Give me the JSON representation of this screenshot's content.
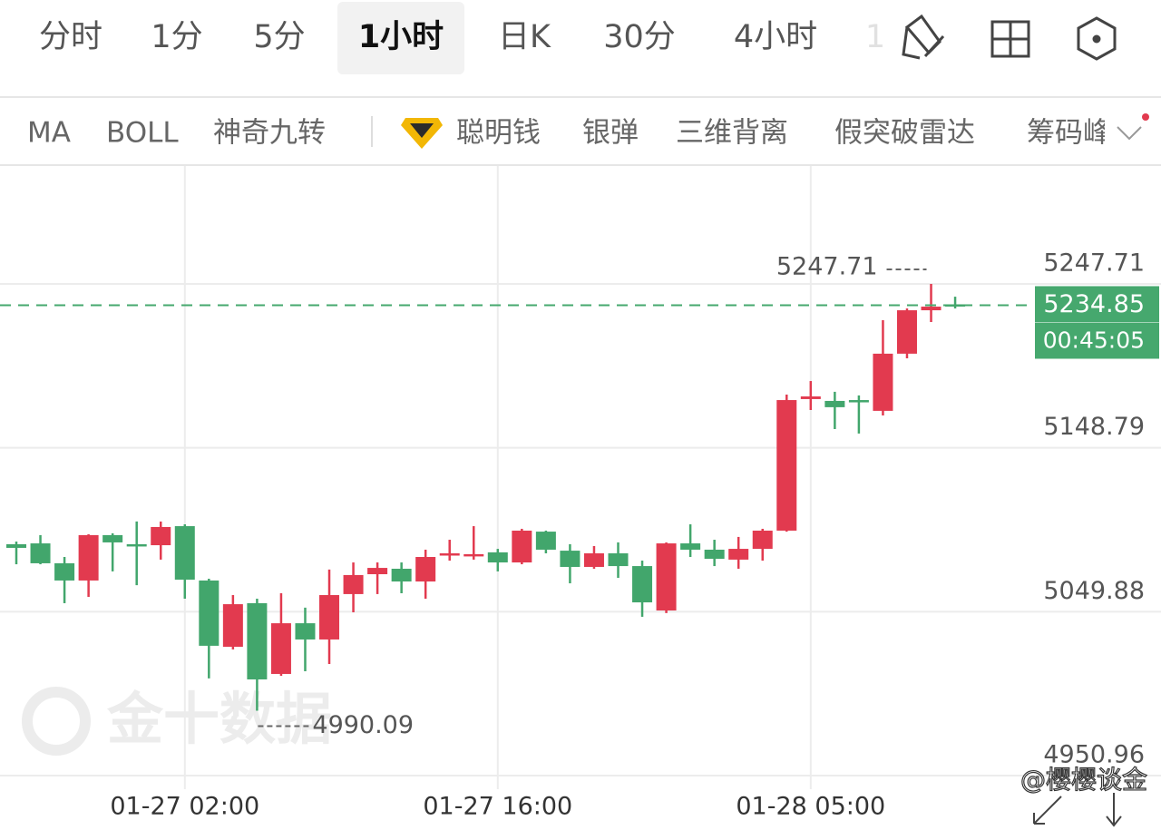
{
  "tabs": [
    "分时",
    "1分",
    "5分",
    "1小时",
    "日K",
    "30分",
    "4小时",
    "1"
  ],
  "active_tab": 3,
  "indicators": [
    "MA",
    "BOLL",
    "神奇九转",
    "聪明钱",
    "银弹",
    "三维背离",
    "假突破雷达",
    "筹码峰"
  ],
  "watermark": "金十数据",
  "credit": "@樱樱谈金",
  "chart_data": {
    "type": "candlestick",
    "categories": [
      null,
      null,
      null,
      null,
      null,
      null,
      null,
      "01-27 02:00",
      null,
      null,
      null,
      null,
      null,
      null,
      null,
      null,
      null,
      null,
      null,
      null,
      "01-27 16:00",
      null,
      null,
      null,
      null,
      null,
      null,
      null,
      null,
      null,
      null,
      null,
      null,
      "01-28 05:00",
      null,
      null,
      null,
      null,
      null,
      null
    ],
    "open": [
      5090.6,
      5091.1,
      5079.1,
      5068.7,
      5096.1,
      5090.6,
      5090.0,
      5101.5,
      5068.7,
      5028.7,
      5055.0,
      5012.3,
      5042.9,
      5033.1,
      5060.5,
      5072.5,
      5075.8,
      5068.1,
      5084.0,
      5084.0,
      5085.7,
      5079.6,
      5098.2,
      5086.7,
      5076.9,
      5085.1,
      5077.4,
      5050.6,
      5091.1,
      5087.3,
      5081.3,
      5087.8,
      5098.8,
      5178.2,
      5177.1,
      5177.6,
      5171.1,
      5205.6,
      5231.8,
      5235.4
    ],
    "high": [
      5092.2,
      5096.1,
      5082.9,
      5096.6,
      5097.2,
      5104.3,
      5104.3,
      5102.6,
      5069.8,
      5059.9,
      5057.7,
      5061.0,
      5052.3,
      5075.3,
      5079.6,
      5079.6,
      5079.6,
      5087.3,
      5093.3,
      5101.5,
      5087.8,
      5099.9,
      5098.8,
      5090.6,
      5089.5,
      5091.7,
      5080.7,
      5091.7,
      5102.6,
      5093.3,
      5095.0,
      5099.9,
      5180.9,
      5189.1,
      5182.6,
      5180.4,
      5225.8,
      5232.9,
      5247.71,
      5240.0
    ],
    "low": [
      5078.5,
      5078.5,
      5055.0,
      5058.8,
      5074.2,
      5065.9,
      5081.3,
      5057.7,
      5009.6,
      5027.1,
      4990.09,
      5011.2,
      5013.9,
      5018.3,
      5049.5,
      5060.5,
      5061.0,
      5057.7,
      5080.7,
      5081.3,
      5074.2,
      5078.5,
      5085.1,
      5067.0,
      5075.8,
      5070.3,
      5046.8,
      5049.0,
      5082.9,
      5077.4,
      5075.8,
      5080.7,
      5098.2,
      5171.6,
      5160.1,
      5157.4,
      5168.3,
      5202.8,
      5224.7,
      5232.9
    ],
    "close": [
      5088.4,
      5079.1,
      5068.7,
      5096.1,
      5091.7,
      5089.5,
      5101.0,
      5069.2,
      5029.3,
      5054.4,
      5009.0,
      5042.9,
      5033.1,
      5059.9,
      5072.0,
      5076.3,
      5068.1,
      5082.9,
      5085.1,
      5084.6,
      5079.6,
      5098.8,
      5087.3,
      5076.9,
      5085.1,
      5077.4,
      5055.5,
      5091.1,
      5087.3,
      5081.8,
      5087.8,
      5098.8,
      5177.6,
      5179.8,
      5173.3,
      5176.5,
      5205.6,
      5231.8,
      5234.0,
      5234.85
    ],
    "up_color": "#e23a4f",
    "down_color": "#42a66c",
    "price_color": "#46a86e",
    "countdown": "00:45:05",
    "ylim": [
      4950.96,
      5318.88
    ],
    "yticks": [
      4950.96,
      5049.88,
      5148.79,
      5247.71
    ],
    "grid": true
  }
}
